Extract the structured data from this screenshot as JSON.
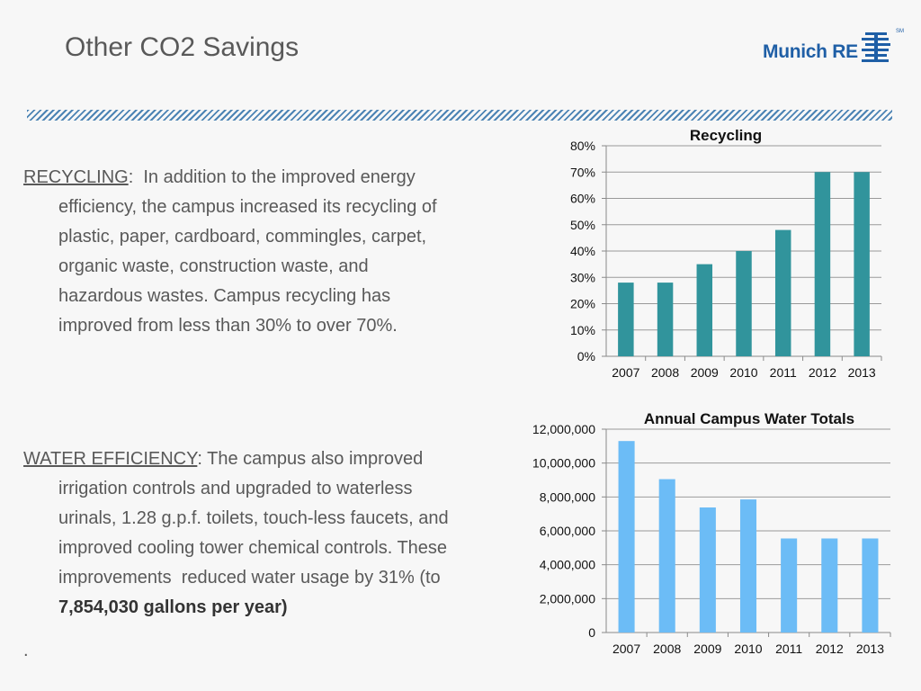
{
  "slide": {
    "title": "Other CO2 Savings"
  },
  "logo": {
    "text": "Munich RE",
    "mark": "SM"
  },
  "recycling_text": {
    "heading": "RECYCLING",
    "sep": ":",
    "lines": [
      "  In addition to the improved energy",
      "efficiency, the campus increased its recycling of",
      "plastic, paper, cardboard, commingles, carpet,",
      "organic waste, construction waste, and",
      "hazardous wastes.  Campus recycling has",
      "improved from less than 30% to over 70%."
    ]
  },
  "water_text": {
    "heading": "WATER EFFICIENCY",
    "sep": ":",
    "lines": [
      " The campus also improved",
      "irrigation controls and upgraded to waterless",
      "urinals, 1.28 g.p.f. toilets, touch-less faucets, and",
      "improved cooling tower chemical controls.  These",
      "improvements  reduced water usage by 31% (to"
    ],
    "bold_line": "7,854,030 gallons per year)"
  },
  "footer_dot": ".",
  "chart_data": [
    {
      "type": "bar",
      "title": "Recycling",
      "categories": [
        "2007",
        "2008",
        "2009",
        "2010",
        "2011",
        "2012",
        "2013"
      ],
      "values": [
        28,
        28,
        35,
        40,
        48,
        70,
        70
      ],
      "ylim": [
        0,
        80
      ],
      "yticks": [
        0,
        10,
        20,
        30,
        40,
        50,
        60,
        70,
        80
      ],
      "ytick_labels": [
        "0%",
        "10%",
        "20%",
        "30%",
        "40%",
        "50%",
        "60%",
        "70%",
        "80%"
      ],
      "color": "#31949c",
      "grid": true
    },
    {
      "type": "bar",
      "title": "Annual Campus Water Totals",
      "categories": [
        "2007",
        "2008",
        "2009",
        "2010",
        "2011",
        "2012",
        "2013"
      ],
      "values": [
        11300000,
        9050000,
        7380000,
        7854030,
        5550000,
        5550000,
        5550000
      ],
      "ylim": [
        0,
        12000000
      ],
      "yticks": [
        0,
        2000000,
        4000000,
        6000000,
        8000000,
        10000000,
        12000000
      ],
      "ytick_labels": [
        "0",
        "2,000,000",
        "4,000,000",
        "6,000,000",
        "8,000,000",
        "10,000,000",
        "12,000,000"
      ],
      "color": "#6cbcf6",
      "grid": true
    }
  ]
}
